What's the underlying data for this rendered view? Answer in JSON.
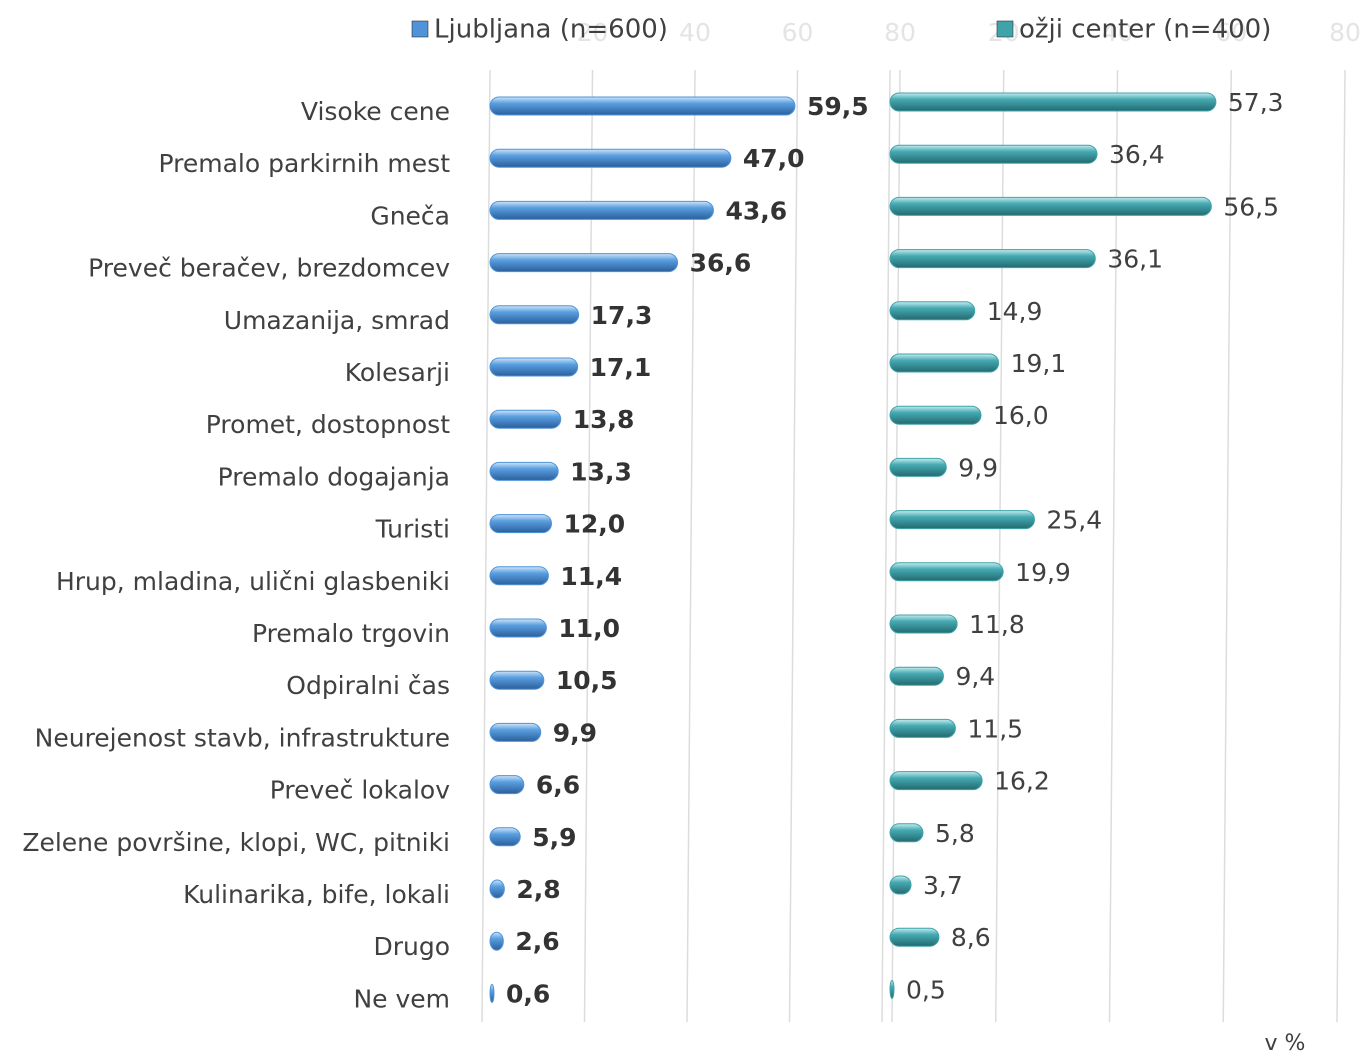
{
  "chart_data": [
    {
      "type": "bar",
      "categories": [
        "Visoke cene",
        "Premalo parkirnih mest",
        "Gneča",
        "Preveč beračev, brezdomcev",
        "Umazanija, smrad",
        "Kolesarji",
        "Promet, dostopnost",
        "Premalo dogajanja",
        "Turisti",
        "Hrup, mladina, ulični glasbeniki",
        "Premalo trgovin",
        "Odpiralni čas",
        "Neurejenost stavb, infrastrukture",
        "Preveč lokalov",
        "Zelene površine, klopi, WC, pitniki",
        "Kulinarika, bife, lokali",
        "Drugo",
        "Ne vem"
      ],
      "series": [
        {
          "name": "Ljubljana (n=600)",
          "color": "#4f94d9",
          "values": [
            59.5,
            47.0,
            43.6,
            36.6,
            17.3,
            17.1,
            13.8,
            13.3,
            12.0,
            11.4,
            11.0,
            10.5,
            9.9,
            6.6,
            5.9,
            2.8,
            2.6,
            0.6
          ],
          "value_labels": [
            "59,5",
            "47,0",
            "43,6",
            "36,6",
            "17,3",
            "17,1",
            "13,8",
            "13,3",
            "12,0",
            "11,4",
            "11,0",
            "10,5",
            "9,9",
            "6,6",
            "5,9",
            "2,8",
            "2,6",
            "0,6"
          ]
        }
      ],
      "xlim": [
        0,
        80
      ],
      "xticks": [
        20,
        40,
        60,
        80
      ],
      "grid": true
    },
    {
      "type": "bar",
      "series": [
        {
          "name": "ožji center (n=400)",
          "color": "#3fa3ab",
          "values": [
            57.3,
            36.4,
            56.5,
            36.1,
            14.9,
            19.1,
            16.0,
            9.9,
            25.4,
            19.9,
            11.8,
            9.4,
            11.5,
            16.2,
            5.8,
            3.7,
            8.6,
            0.5
          ],
          "value_labels": [
            "57,3",
            "36,4",
            "56,5",
            "36,1",
            "14,9",
            "19,1",
            "16,0",
            "9,9",
            "25,4",
            "19,9",
            "11,8",
            "9,4",
            "11,5",
            "16,2",
            "5,8",
            "3,7",
            "8,6",
            "0,5"
          ]
        }
      ],
      "xlim": [
        0,
        80
      ],
      "xticks": [
        20,
        40,
        60,
        80
      ],
      "grid": true
    }
  ],
  "note": "v %"
}
